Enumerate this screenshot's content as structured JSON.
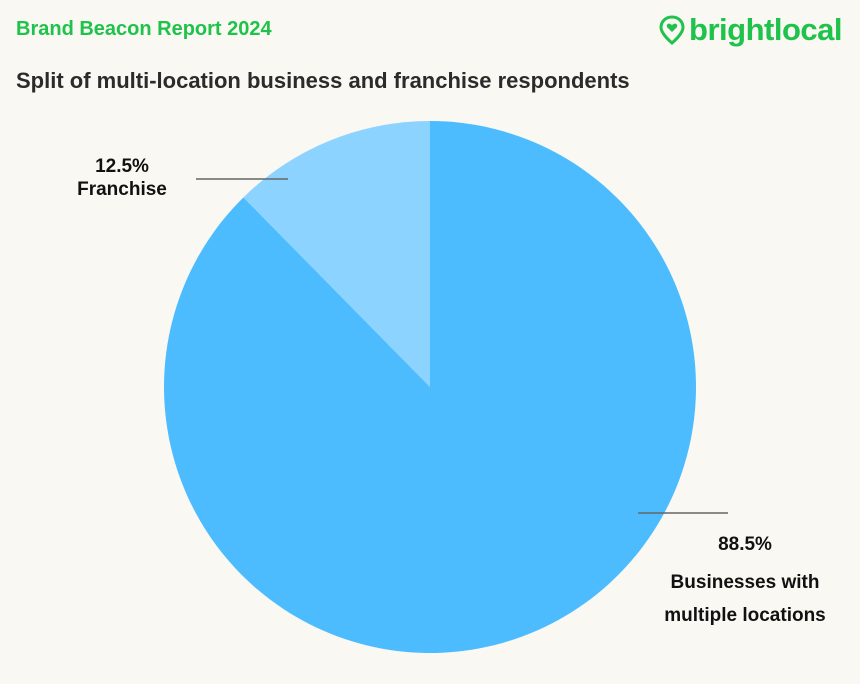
{
  "header": {
    "report_name": "Brand Beacon Report 2024",
    "brand_name": "brightlocal",
    "brand_icon": "map-pin-heart-icon",
    "brand_color": "#1fc24a"
  },
  "chart_data": {
    "type": "pie",
    "title": "Split of multi-location business and franchise respondents",
    "categories": [
      "Franchise",
      "Businesses with multiple locations"
    ],
    "values": [
      12.5,
      88.5
    ],
    "value_labels": [
      "12.5%",
      "88.5%"
    ],
    "colors": [
      "#8dd3ff",
      "#4dbcff"
    ],
    "legend": "none"
  }
}
